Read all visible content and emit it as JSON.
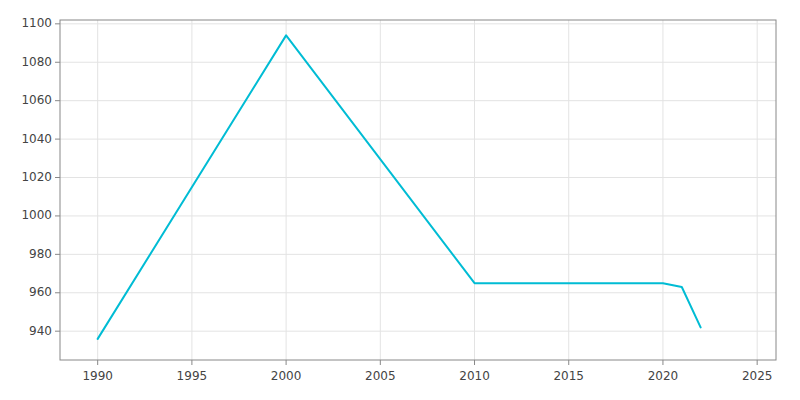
{
  "chart_data": {
    "type": "line",
    "x": [
      1990,
      2000,
      2010,
      2020,
      2021,
      2022
    ],
    "values": [
      936,
      1094,
      965,
      965,
      963,
      942
    ],
    "color": "#00BCD4",
    "xlim": [
      1988,
      2026
    ],
    "ylim": [
      925,
      1102
    ],
    "xticks": [
      1990,
      1995,
      2000,
      2005,
      2010,
      2015,
      2020,
      2025
    ],
    "yticks": [
      940,
      960,
      980,
      1000,
      1020,
      1040,
      1060,
      1080,
      1100
    ],
    "grid": true
  }
}
